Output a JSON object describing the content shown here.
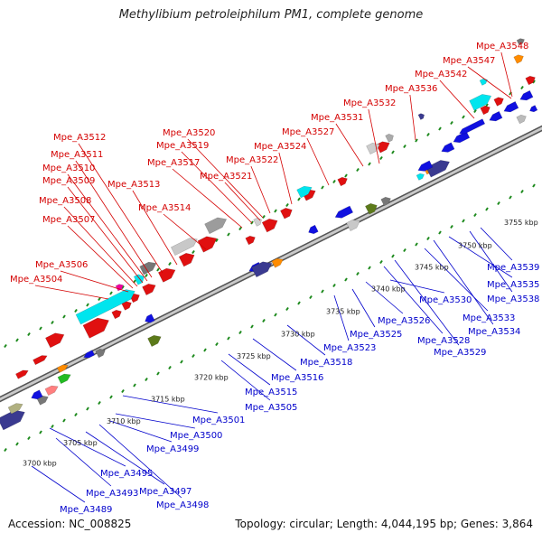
{
  "title": "Methylibium petroleiphilum PM1, complete genome",
  "accession": "Accession: NC_008825",
  "summary": "Topology: circular; Length: 4,044,195 bp; Genes: 3,864",
  "colors": {
    "top_labels": "#d40000",
    "bottom_labels": "#0000cc",
    "backbone": "#8a8a8a",
    "ticks": "#1d8a1d"
  },
  "ticks": [
    "3700 kbp",
    "3705 kbp",
    "3710 kbp",
    "3715 kbp",
    "3720 kbp",
    "3725 kbp",
    "3730 kbp",
    "3735 kbp",
    "3740 kbp",
    "3745 kbp",
    "3750 kbp",
    "3755 kbp"
  ],
  "top_labels": [
    "Mpe_A3504",
    "Mpe_A3506",
    "Mpe_A3507",
    "Mpe_A3508",
    "Mpe_A3509",
    "Mpe_A3510",
    "Mpe_A3511",
    "Mpe_A3512",
    "Mpe_A3513",
    "Mpe_A3514",
    "Mpe_A3517",
    "Mpe_A3519",
    "Mpe_A3520",
    "Mpe_A3521",
    "Mpe_A3522",
    "Mpe_A3524",
    "Mpe_A3527",
    "Mpe_A3531",
    "Mpe_A3532",
    "Mpe_A3536",
    "Mpe_A3542",
    "Mpe_A3547",
    "Mpe_A3548"
  ],
  "bottom_labels": [
    "Mpe_A3489",
    "Mpe_A3493",
    "Mpe_A3495",
    "Mpe_A3497",
    "Mpe_A3498",
    "Mpe_A3499",
    "Mpe_A3500",
    "Mpe_A3501",
    "Mpe_A3505",
    "Mpe_A3515",
    "Mpe_A3516",
    "Mpe_A3518",
    "Mpe_A3523",
    "Mpe_A3525",
    "Mpe_A3526",
    "Mpe_A3528",
    "Mpe_A3529",
    "Mpe_A3530",
    "Mpe_A3533",
    "Mpe_A3534",
    "Mpe_A3535",
    "Mpe_A3538",
    "Mpe_A3539"
  ]
}
